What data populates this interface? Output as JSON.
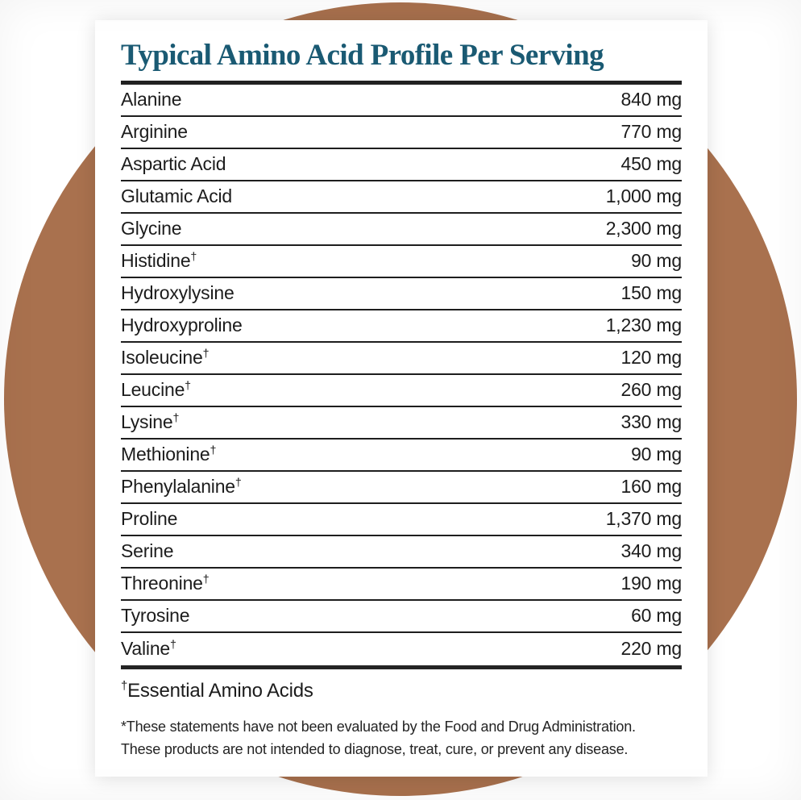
{
  "title": "Typical Amino Acid Profile Per Serving",
  "table": {
    "dagger": "†",
    "rows": [
      {
        "name": "Alanine",
        "essential": false,
        "amount": "840 mg"
      },
      {
        "name": "Arginine",
        "essential": false,
        "amount": "770 mg"
      },
      {
        "name": "Aspartic Acid",
        "essential": false,
        "amount": "450 mg"
      },
      {
        "name": "Glutamic Acid",
        "essential": false,
        "amount": "1,000 mg"
      },
      {
        "name": "Glycine",
        "essential": false,
        "amount": "2,300 mg"
      },
      {
        "name": "Histidine",
        "essential": true,
        "amount": "90 mg"
      },
      {
        "name": "Hydroxylysine",
        "essential": false,
        "amount": "150 mg"
      },
      {
        "name": "Hydroxyproline",
        "essential": false,
        "amount": "1,230 mg"
      },
      {
        "name": "Isoleucine",
        "essential": true,
        "amount": "120 mg"
      },
      {
        "name": "Leucine",
        "essential": true,
        "amount": "260 mg"
      },
      {
        "name": "Lysine",
        "essential": true,
        "amount": "330 mg"
      },
      {
        "name": "Methionine",
        "essential": true,
        "amount": "90 mg"
      },
      {
        "name": "Phenylalanine",
        "essential": true,
        "amount": "160 mg"
      },
      {
        "name": "Proline",
        "essential": false,
        "amount": "1,370 mg"
      },
      {
        "name": "Serine",
        "essential": false,
        "amount": "340 mg"
      },
      {
        "name": "Threonine",
        "essential": true,
        "amount": "190 mg"
      },
      {
        "name": "Tyrosine",
        "essential": false,
        "amount": "60 mg"
      },
      {
        "name": "Valine",
        "essential": true,
        "amount": "220 mg"
      }
    ]
  },
  "footnotes": {
    "dagger": "†",
    "essential_note": "Essential Amino Acids",
    "disclaimer_line1": "*These statements have not been evaluated by the Food and Drug Administration.",
    "disclaimer_line2": "These products are not intended to diagnose, treat, cure, or prevent any disease."
  },
  "colors": {
    "title_teal": "#1a5a73",
    "circle_brown": "#a9714e",
    "rule_dark": "#212121",
    "text_dark": "#1c1c1c"
  }
}
